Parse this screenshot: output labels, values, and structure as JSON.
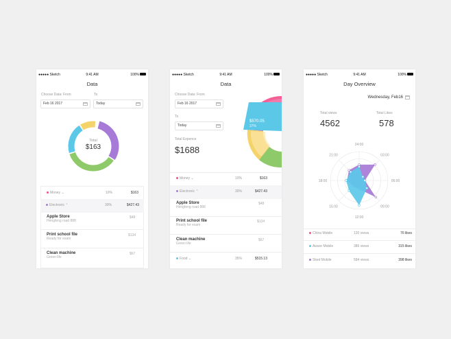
{
  "status": {
    "carrier": "●●●●● Sketch ",
    "time": "9:41 AM",
    "battery": "100%"
  },
  "colors": {
    "pink": "#f24f8d",
    "purple": "#a67ad6",
    "cyan": "#5bc8e8",
    "yellow": "#f5d36b",
    "green": "#8ec96a"
  },
  "screen1": {
    "title": "Data",
    "from_label": "Choose Data: From",
    "to_label": "To",
    "from_value": "Feb 16 2017",
    "to_value": "Today",
    "donut_label": "Total",
    "donut_value": "$163",
    "donut_segments": [
      {
        "color": "#a67ad6",
        "value": 30
      },
      {
        "color": "#8ec96a",
        "value": 35
      },
      {
        "color": "#5bc8e8",
        "value": 20
      },
      {
        "color": "#f5d36b",
        "value": 10
      }
    ],
    "categories": [
      {
        "name": "Money",
        "pct": "10%",
        "amount": "$163",
        "color": "#f24f8d"
      },
      {
        "name": "Electronic",
        "pct": "30%",
        "amount": "$427.43",
        "color": "#a67ad6"
      }
    ],
    "items": [
      {
        "title": "Apple Store",
        "sub": "Hengfeng road 888",
        "amount": "$48"
      },
      {
        "title": "Print school file",
        "sub": "Ready for exam",
        "amount": "$134"
      },
      {
        "title": "Clean machine",
        "sub": "Green life",
        "amount": "$67"
      }
    ]
  },
  "screen2": {
    "title": "Data",
    "from_label": "Choose Data: From",
    "to_label": "To",
    "from_value": "Feb 16 2017",
    "to_value": "Today",
    "expense_label": "Total Expence",
    "expense_value": "$1688",
    "tooltip_value": "$570.05",
    "tooltip_pct": "37%",
    "categories": [
      {
        "name": "Money",
        "pct": "10%",
        "amount": "$163",
        "color": "#f24f8d"
      },
      {
        "name": "Electronic",
        "pct": "30%",
        "amount": "$427.43",
        "color": "#a67ad6"
      }
    ],
    "items": [
      {
        "title": "Apple Store",
        "sub": "Hengfeng road 888",
        "amount": "$48"
      },
      {
        "title": "Print school file",
        "sub": "Ready for exam",
        "amount": "$134"
      },
      {
        "title": "Clean machine",
        "sub": "Green life",
        "amount": "$67"
      }
    ],
    "food": {
      "name": "Food",
      "pct": "35%",
      "amount": "$515.13",
      "color": "#5bc8e8"
    }
  },
  "screen3": {
    "title": "Day Overview",
    "date": "Wednesday, Feb16",
    "views_label": "Total views",
    "views_value": "4562",
    "likes_label": "Total Likes",
    "likes_value": "578",
    "hour_labels": [
      "24:00",
      "03:00",
      "06:00",
      "09:00",
      "12:00",
      "15:00",
      "18:00",
      "21:00"
    ],
    "radar_series": [
      {
        "color": "#a67ad6",
        "values": [
          0.55,
          0.78,
          0.2,
          0.82,
          0.3,
          0.28,
          0.42,
          0.5
        ]
      },
      {
        "color": "#5bc8e8",
        "values": [
          0.48,
          0.18,
          0.2,
          0.38,
          0.86,
          0.5,
          0.45,
          0.42
        ]
      }
    ],
    "legend": [
      {
        "name": "China Mobile",
        "views": "120 views",
        "likes": "76 likes",
        "color": "#f24f8d"
      },
      {
        "name": "Aware Mobile",
        "views": "386 views",
        "likes": "315 likes",
        "color": "#5bc8e8"
      },
      {
        "name": "Sked Mobile",
        "views": "584 views",
        "likes": "398 likes",
        "color": "#a67ad6"
      }
    ]
  }
}
